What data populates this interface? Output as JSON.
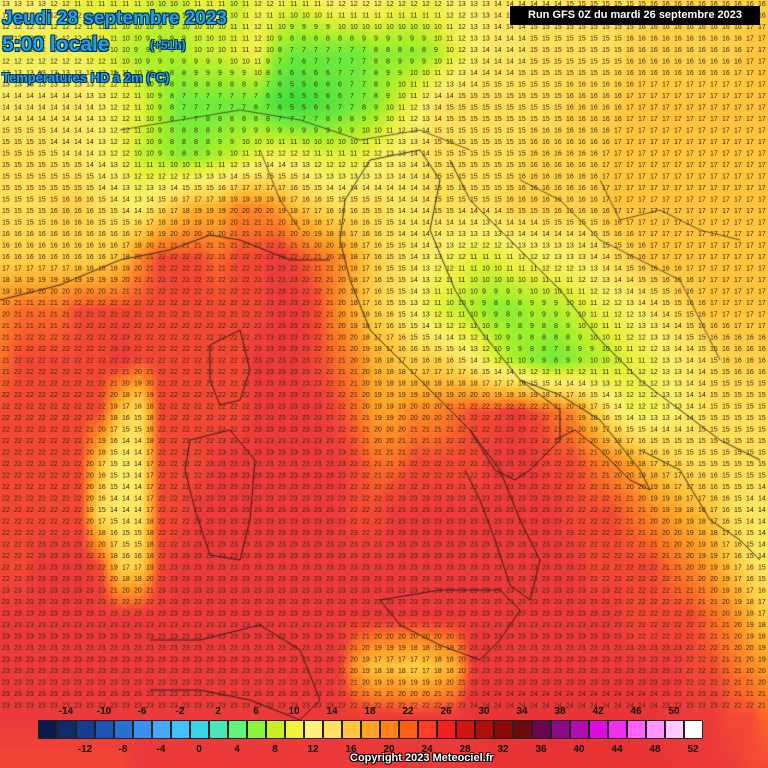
{
  "header": {
    "date": "Jeudi 28 septembre 2023",
    "time": "5:00 locale",
    "lead": "(+51h)",
    "parameter": "Températures HD à 2m (°C)"
  },
  "run_label": "Run GFS 0Z du mardi 26 septembre 2023",
  "copyright": "Copyright 2023 Meteociel.fr",
  "legend": {
    "unit": "°C",
    "colors": [
      "#0a1a4a",
      "#102a6a",
      "#173d90",
      "#1f53b3",
      "#2a70d3",
      "#3a8ff0",
      "#48a8fa",
      "#3fc0ff",
      "#36d5e8",
      "#48e6b4",
      "#62f47a",
      "#8af23c",
      "#c8f020",
      "#f2f23a",
      "#fff27a",
      "#ffe060",
      "#ffc43c",
      "#ffa226",
      "#ff8212",
      "#ff5f12",
      "#ff3c26",
      "#f2211f",
      "#d31414",
      "#b00d0d",
      "#8c0a0a",
      "#6e0a0a",
      "#6a0650",
      "#8a088a",
      "#b40ab4",
      "#dc0adc",
      "#f02ef0",
      "#ff62ff",
      "#ff96ff",
      "#ffc8ff",
      "#ffffff"
    ],
    "top_labels": [
      "-14",
      "-10",
      "-6",
      "-2",
      "2",
      "6",
      "10",
      "14",
      "18",
      "22",
      "26",
      "30",
      "34",
      "38",
      "42",
      "46",
      "50"
    ],
    "bottom_labels": [
      "-12",
      "-8",
      "-4",
      "0",
      "4",
      "8",
      "12",
      "16",
      "20",
      "24",
      "28",
      "32",
      "36",
      "40",
      "44",
      "48",
      "52"
    ]
  },
  "map_values": {
    "note_rows": [
      [
        "13",
        "13",
        "13",
        "12",
        "11",
        "11",
        "11",
        "11",
        "10",
        "10",
        "11",
        "11",
        "10",
        "12",
        "12",
        "11",
        "12",
        "13",
        "13",
        "13",
        "12",
        "12",
        "12",
        "13",
        "13",
        "14",
        "14",
        "14",
        "14",
        "15",
        "15",
        "15",
        "15",
        "16",
        "16",
        "16",
        "16",
        "16",
        "16",
        "16"
      ],
      [
        "12",
        "12",
        "12",
        "12",
        "12",
        "11",
        "10",
        "9",
        "9",
        "9",
        "10",
        "10",
        "11",
        "12",
        "8",
        "7",
        "7",
        "7",
        "7",
        "8",
        "8",
        "8",
        "9",
        "11",
        "13",
        "14",
        "14",
        "15",
        "15",
        "15",
        "15",
        "15",
        "16",
        "16",
        "16",
        "16",
        "16",
        "16",
        "17",
        "17"
      ],
      [
        "14",
        "14",
        "14",
        "14",
        "14",
        "13",
        "12",
        "11",
        "9",
        "7",
        "7",
        "7",
        "7",
        "7",
        "5",
        "4",
        "5",
        "6",
        "7",
        "8",
        "10",
        "12",
        "14",
        "15",
        "15",
        "15",
        "15",
        "15",
        "15",
        "16",
        "16",
        "16",
        "17",
        "17",
        "17",
        "17",
        "17",
        "17",
        "17",
        "17"
      ],
      [
        "15",
        "15",
        "15",
        "14",
        "14",
        "13",
        "12",
        "10",
        "9",
        "8",
        "8",
        "9",
        "10",
        "11",
        "12",
        "12",
        "11",
        "11",
        "11",
        "12",
        "13",
        "14",
        "15",
        "15",
        "15",
        "15",
        "15",
        "16",
        "16",
        "16",
        "16",
        "17",
        "17",
        "17",
        "17",
        "17",
        "17",
        "17",
        "17",
        "17"
      ],
      [
        "15",
        "15",
        "15",
        "16",
        "16",
        "15",
        "14",
        "13",
        "15",
        "17",
        "18",
        "18",
        "20",
        "20",
        "19",
        "17",
        "16",
        "15",
        "15",
        "15",
        "14",
        "14",
        "15",
        "15",
        "15",
        "15",
        "16",
        "16",
        "16",
        "16",
        "16",
        "17",
        "17",
        "17",
        "17",
        "17",
        "17",
        "17",
        "17",
        "17"
      ],
      [
        "16",
        "16",
        "16",
        "16",
        "16",
        "16",
        "17",
        "20",
        "22",
        "22",
        "22",
        "21",
        "22",
        "22",
        "23",
        "22",
        "21",
        "20",
        "18",
        "16",
        "15",
        "14",
        "13",
        "12",
        "11",
        "11",
        "12",
        "12",
        "13",
        "13",
        "14",
        "15",
        "16",
        "17",
        "17",
        "17",
        "17",
        "17",
        "17",
        "17"
      ],
      [
        "20",
        "21",
        "21",
        "21",
        "22",
        "22",
        "22",
        "22",
        "22",
        "22",
        "22",
        "22",
        "22",
        "22",
        "23",
        "23",
        "22",
        "20",
        "18",
        "16",
        "15",
        "13",
        "11",
        "10",
        "9",
        "8",
        "8",
        "9",
        "9",
        "10",
        "11",
        "12",
        "13",
        "14",
        "15",
        "16",
        "17",
        "17",
        "17",
        "17"
      ],
      [
        "21",
        "22",
        "22",
        "22",
        "22",
        "22",
        "23",
        "22",
        "22",
        "22",
        "22",
        "22",
        "22",
        "23",
        "23",
        "23",
        "22",
        "21",
        "20",
        "18",
        "17",
        "16",
        "16",
        "15",
        "13",
        "11",
        "9",
        "8",
        "7",
        "8",
        "9",
        "10",
        "11",
        "12",
        "13",
        "14",
        "15",
        "16",
        "16",
        "16"
      ],
      [
        "22",
        "22",
        "22",
        "22",
        "22",
        "22",
        "17",
        "15",
        "22",
        "22",
        "22",
        "22",
        "22",
        "23",
        "23",
        "23",
        "23",
        "22",
        "21",
        "19",
        "19",
        "20",
        "20",
        "21",
        "22",
        "22",
        "23",
        "22",
        "21",
        "20",
        "17",
        "14",
        "12",
        "12",
        "13",
        "14",
        "15",
        "15",
        "15",
        "15"
      ],
      [
        "22",
        "22",
        "22",
        "22",
        "22",
        "17",
        "13",
        "14",
        "22",
        "22",
        "22",
        "23",
        "23",
        "23",
        "23",
        "23",
        "23",
        "23",
        "22",
        "21",
        "21",
        "22",
        "22",
        "22",
        "22",
        "23",
        "23",
        "23",
        "22",
        "22",
        "21",
        "20",
        "19",
        "17",
        "16",
        "15",
        "15",
        "15",
        "15",
        "15"
      ],
      [
        "22",
        "22",
        "22",
        "22",
        "22",
        "15",
        "14",
        "14",
        "22",
        "22",
        "23",
        "23",
        "23",
        "23",
        "23",
        "23",
        "23",
        "23",
        "22",
        "22",
        "23",
        "23",
        "23",
        "23",
        "23",
        "23",
        "23",
        "23",
        "23",
        "22",
        "22",
        "22",
        "21",
        "20",
        "19",
        "18",
        "17",
        "15",
        "14",
        "14"
      ],
      [
        "22",
        "22",
        "23",
        "23",
        "23",
        "22",
        "16",
        "16",
        "22",
        "23",
        "23",
        "23",
        "23",
        "23",
        "23",
        "23",
        "23",
        "23",
        "23",
        "23",
        "23",
        "23",
        "23",
        "23",
        "23",
        "23",
        "23",
        "23",
        "23",
        "23",
        "22",
        "22",
        "22",
        "22",
        "21",
        "20",
        "19",
        "17",
        "15",
        "14"
      ],
      [
        "23",
        "23",
        "23",
        "23",
        "23",
        "23",
        "23",
        "23",
        "23",
        "23",
        "23",
        "23",
        "23",
        "23",
        "23",
        "23",
        "23",
        "23",
        "23",
        "23",
        "23",
        "23",
        "23",
        "23",
        "23",
        "23",
        "23",
        "23",
        "23",
        "23",
        "23",
        "23",
        "22",
        "22",
        "22",
        "22",
        "21",
        "20",
        "18",
        "16"
      ],
      [
        "23",
        "23",
        "23",
        "23",
        "23",
        "23",
        "23",
        "23",
        "23",
        "23",
        "23",
        "23",
        "23",
        "23",
        "23",
        "23",
        "23",
        "23",
        "19",
        "17",
        "17",
        "16",
        "17",
        "18",
        "23",
        "23",
        "23",
        "23",
        "23",
        "23",
        "23",
        "23",
        "23",
        "23",
        "23",
        "22",
        "22",
        "21",
        "20",
        "19"
      ],
      [
        "23",
        "23",
        "23",
        "23",
        "23",
        "23",
        "23",
        "23",
        "23",
        "23",
        "23",
        "23",
        "23",
        "23",
        "23",
        "23",
        "23",
        "23",
        "23",
        "23",
        "23",
        "23",
        "23",
        "23",
        "24",
        "24",
        "24",
        "24",
        "24",
        "24",
        "24",
        "24",
        "24",
        "24",
        "23",
        "23",
        "23",
        "22",
        "22",
        "21"
      ],
      [
        "22",
        "22",
        "22",
        "22",
        "22",
        "22",
        "22",
        "23",
        "23",
        "23",
        "23",
        "23",
        "23",
        "23",
        "23",
        "23",
        "23",
        "23",
        "23",
        "23",
        "23",
        "23",
        "23",
        "23",
        "23",
        "24",
        "24",
        "24",
        "24",
        "24",
        "24",
        "24",
        "24",
        "24",
        "24",
        "23",
        "23",
        "23",
        "22",
        "22"
      ]
    ]
  }
}
